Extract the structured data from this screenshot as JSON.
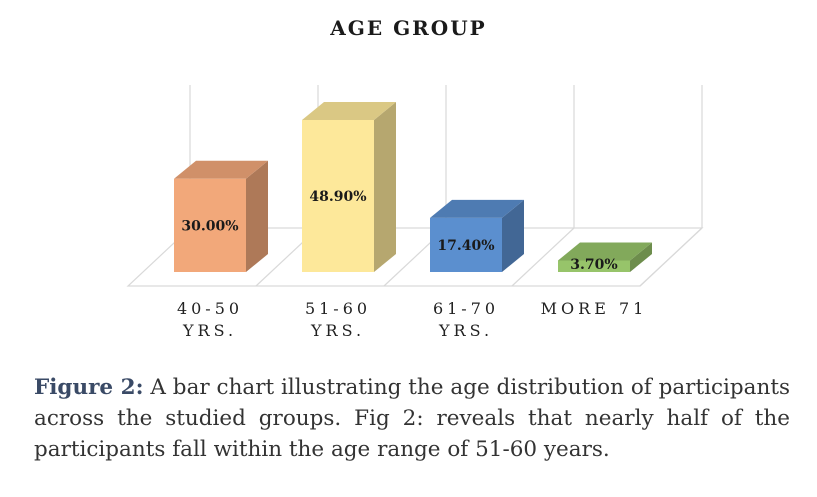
{
  "chart_data": {
    "type": "bar",
    "title": "AGE GROUP",
    "categories": [
      [
        "40-50",
        "YRS."
      ],
      [
        "51-60",
        "YRS."
      ],
      [
        "61-70",
        "YRS."
      ],
      [
        "MORE 71"
      ]
    ],
    "values": [
      30.0,
      48.9,
      17.4,
      3.7
    ],
    "data_labels": [
      "30.00%",
      "48.90%",
      "17.40%",
      "3.70%"
    ],
    "colors": [
      "#f2a87a",
      "#fde89a",
      "#5b8fcf",
      "#97c46a"
    ],
    "xlabel": "",
    "ylabel": "",
    "ylim": [
      0,
      60
    ],
    "grid": false,
    "legend": "none",
    "style": "3d-column"
  },
  "caption": {
    "bold": "Figure 2:",
    "text": " A bar chart illustrating the age distribution of participants across the studied groups. Fig 2: reveals that nearly half of the participants fall within the age range of 51-60 years."
  }
}
